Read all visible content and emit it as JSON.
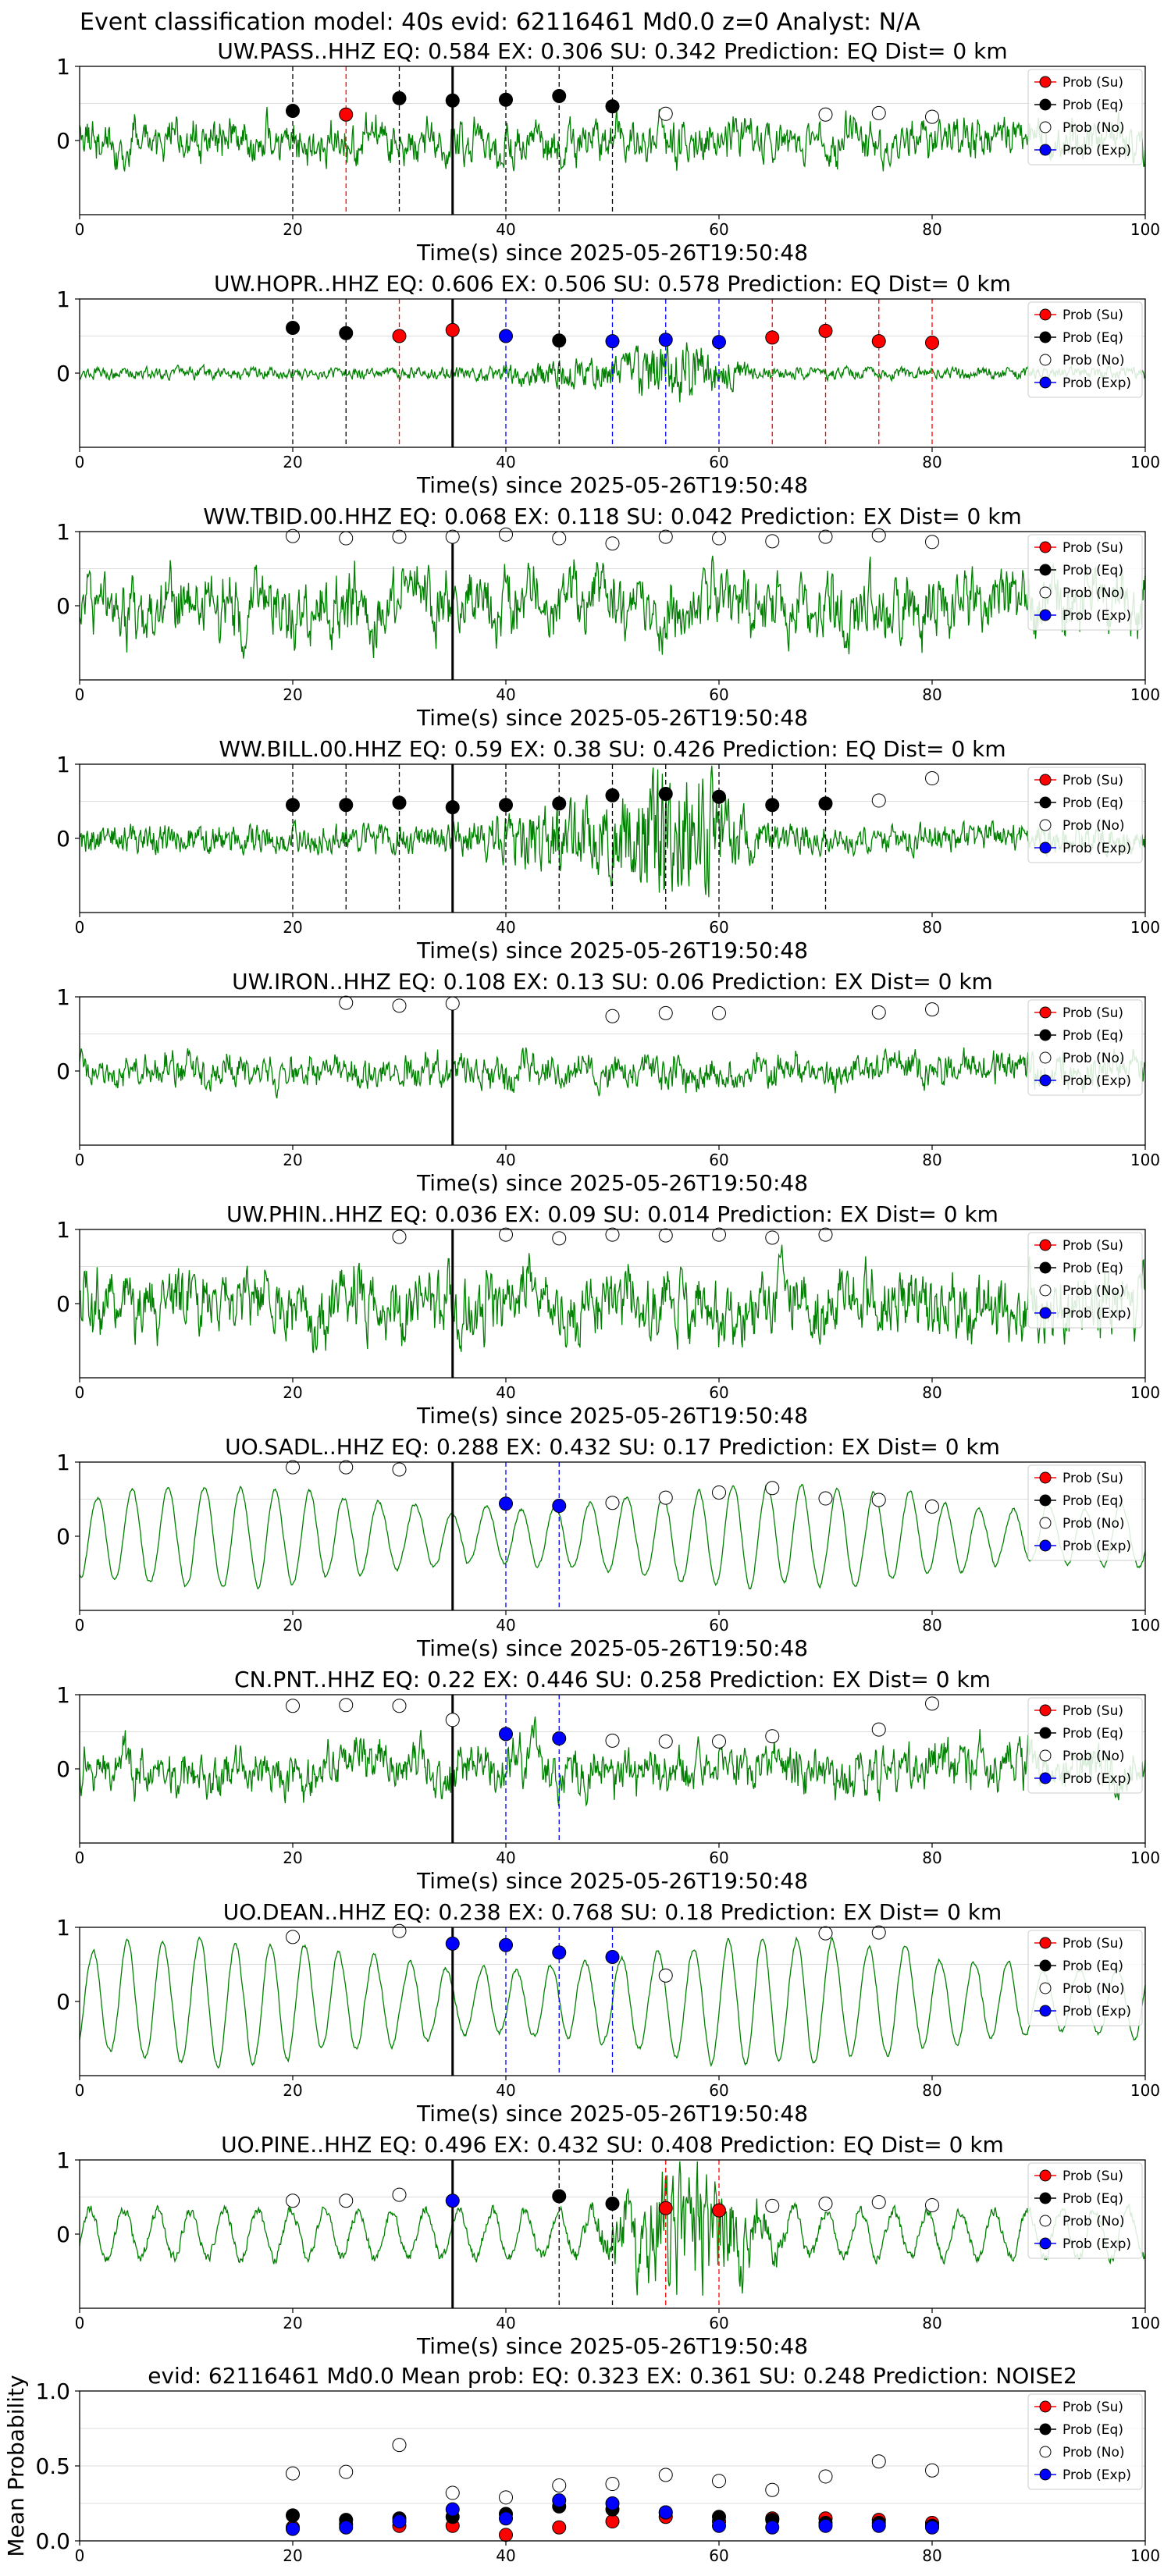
{
  "figure": {
    "suptitle": "Event classification model: 40s evid: 62116461 Md0.0 z=0 Analyst: N/A"
  },
  "legend_labels": [
    "Prob (Su)",
    "Prob (Eq)",
    "Prob (No)",
    "Prob (Exp)"
  ],
  "colors": {
    "trace": "#008000",
    "su": "#ff0000",
    "eq": "#000000",
    "no": "#ffffff",
    "exp": "#0000ff",
    "pick": "#000000"
  },
  "chart_data": [
    {
      "type": "line",
      "title": "UW.PASS..HHZ   EQ: 0.584  EX: 0.306  SU: 0.342   Prediction: EQ    Dist= 0 km",
      "xlabel": "Time(s) since 2025-05-26T19:50:48",
      "xlim": [
        0,
        100
      ],
      "ylim": [
        -1,
        1
      ],
      "xticks": [
        "0",
        "20",
        "40",
        "60",
        "80",
        "100"
      ],
      "yticks": [
        "0",
        "1"
      ],
      "pick_time": 35,
      "waveform": {
        "style": "noise",
        "amplitude": 0.4
      },
      "windows": [
        {
          "t": 20,
          "cls": "eq",
          "p": 0.4
        },
        {
          "t": 25,
          "cls": "su",
          "p": 0.35
        },
        {
          "t": 30,
          "cls": "eq",
          "p": 0.57
        },
        {
          "t": 35,
          "cls": "eq",
          "p": 0.54
        },
        {
          "t": 40,
          "cls": "eq",
          "p": 0.55
        },
        {
          "t": 45,
          "cls": "eq",
          "p": 0.6
        },
        {
          "t": 50,
          "cls": "eq",
          "p": 0.46
        },
        {
          "t": 55,
          "cls": "no",
          "p": 0.36
        },
        {
          "t": 70,
          "cls": "no",
          "p": 0.35
        },
        {
          "t": 75,
          "cls": "no",
          "p": 0.37
        },
        {
          "t": 80,
          "cls": "no",
          "p": 0.32
        }
      ]
    },
    {
      "type": "line",
      "title": "UW.HOPR..HHZ   EQ: 0.606  EX: 0.506  SU: 0.578   Prediction: EQ    Dist= 0 km",
      "xlabel": "Time(s) since 2025-05-26T19:50:48",
      "xlim": [
        0,
        100
      ],
      "ylim": [
        -1,
        1
      ],
      "xticks": [
        "0",
        "20",
        "40",
        "60",
        "80",
        "100"
      ],
      "yticks": [
        "0",
        "1"
      ],
      "pick_time": 35,
      "waveform": {
        "style": "burst",
        "amplitude": 0.08
      },
      "windows": [
        {
          "t": 20,
          "cls": "eq",
          "p": 0.61
        },
        {
          "t": 25,
          "cls": "eq",
          "p": 0.54
        },
        {
          "t": 30,
          "cls": "su",
          "p": 0.5
        },
        {
          "t": 35,
          "cls": "su",
          "p": 0.58
        },
        {
          "t": 40,
          "cls": "exp",
          "p": 0.5
        },
        {
          "t": 45,
          "cls": "eq",
          "p": 0.44
        },
        {
          "t": 50,
          "cls": "exp",
          "p": 0.43
        },
        {
          "t": 55,
          "cls": "exp",
          "p": 0.45
        },
        {
          "t": 60,
          "cls": "exp",
          "p": 0.42
        },
        {
          "t": 65,
          "cls": "su",
          "p": 0.48
        },
        {
          "t": 70,
          "cls": "su",
          "p": 0.57
        },
        {
          "t": 75,
          "cls": "su",
          "p": 0.43
        },
        {
          "t": 80,
          "cls": "su",
          "p": 0.41
        }
      ]
    },
    {
      "type": "line",
      "title": "WW.TBID.00.HHZ   EQ: 0.068  EX: 0.118  SU: 0.042   Prediction: EX    Dist= 0 km",
      "xlabel": "Time(s) since 2025-05-26T19:50:48",
      "xlim": [
        0,
        100
      ],
      "ylim": [
        -1,
        1
      ],
      "xticks": [
        "0",
        "20",
        "40",
        "60",
        "80",
        "100"
      ],
      "yticks": [
        "0",
        "1"
      ],
      "pick_time": 35,
      "waveform": {
        "style": "noise",
        "amplitude": 0.6
      },
      "windows": [
        {
          "t": 20,
          "cls": "no",
          "p": 0.94
        },
        {
          "t": 25,
          "cls": "no",
          "p": 0.91
        },
        {
          "t": 30,
          "cls": "no",
          "p": 0.93
        },
        {
          "t": 35,
          "cls": "no",
          "p": 0.93
        },
        {
          "t": 40,
          "cls": "no",
          "p": 0.96
        },
        {
          "t": 45,
          "cls": "no",
          "p": 0.91
        },
        {
          "t": 50,
          "cls": "no",
          "p": 0.84
        },
        {
          "t": 55,
          "cls": "no",
          "p": 0.93
        },
        {
          "t": 60,
          "cls": "no",
          "p": 0.91
        },
        {
          "t": 65,
          "cls": "no",
          "p": 0.87
        },
        {
          "t": 70,
          "cls": "no",
          "p": 0.93
        },
        {
          "t": 75,
          "cls": "no",
          "p": 0.95
        },
        {
          "t": 80,
          "cls": "no",
          "p": 0.86
        }
      ]
    },
    {
      "type": "line",
      "title": "WW.BILL.00.HHZ   EQ: 0.59  EX: 0.38  SU: 0.426   Prediction: EQ    Dist= 0 km",
      "xlabel": "Time(s) since 2025-05-26T19:50:48",
      "xlim": [
        0,
        100
      ],
      "ylim": [
        -1,
        1
      ],
      "xticks": [
        "0",
        "20",
        "40",
        "60",
        "80",
        "100"
      ],
      "yticks": [
        "0",
        "1"
      ],
      "pick_time": 35,
      "waveform": {
        "style": "burst",
        "amplitude": 0.2
      },
      "windows": [
        {
          "t": 20,
          "cls": "eq",
          "p": 0.45
        },
        {
          "t": 25,
          "cls": "eq",
          "p": 0.45
        },
        {
          "t": 30,
          "cls": "eq",
          "p": 0.48
        },
        {
          "t": 35,
          "cls": "eq",
          "p": 0.42
        },
        {
          "t": 40,
          "cls": "eq",
          "p": 0.45
        },
        {
          "t": 45,
          "cls": "eq",
          "p": 0.47
        },
        {
          "t": 50,
          "cls": "eq",
          "p": 0.58
        },
        {
          "t": 55,
          "cls": "eq",
          "p": 0.6
        },
        {
          "t": 60,
          "cls": "eq",
          "p": 0.56
        },
        {
          "t": 65,
          "cls": "eq",
          "p": 0.45
        },
        {
          "t": 70,
          "cls": "eq",
          "p": 0.47
        },
        {
          "t": 75,
          "cls": "no",
          "p": 0.51
        },
        {
          "t": 80,
          "cls": "no",
          "p": 0.81
        }
      ]
    },
    {
      "type": "line",
      "title": "UW.IRON..HHZ   EQ: 0.108  EX: 0.13  SU: 0.06   Prediction: EX    Dist= 0 km",
      "xlabel": "Time(s) since 2025-05-26T19:50:48",
      "xlim": [
        0,
        100
      ],
      "ylim": [
        -1,
        1
      ],
      "xticks": [
        "0",
        "20",
        "40",
        "60",
        "80",
        "100"
      ],
      "yticks": [
        "0",
        "1"
      ],
      "pick_time": 35,
      "waveform": {
        "style": "noise",
        "amplitude": 0.3
      },
      "windows": [
        {
          "t": 25,
          "cls": "no",
          "p": 0.92
        },
        {
          "t": 30,
          "cls": "no",
          "p": 0.88
        },
        {
          "t": 35,
          "cls": "no",
          "p": 0.91
        },
        {
          "t": 50,
          "cls": "no",
          "p": 0.74
        },
        {
          "t": 55,
          "cls": "no",
          "p": 0.78
        },
        {
          "t": 60,
          "cls": "no",
          "p": 0.78
        },
        {
          "t": 75,
          "cls": "no",
          "p": 0.79
        },
        {
          "t": 80,
          "cls": "no",
          "p": 0.83
        }
      ]
    },
    {
      "type": "line",
      "title": "UW.PHIN..HHZ   EQ: 0.036  EX: 0.09  SU: 0.014   Prediction: EX    Dist= 0 km",
      "xlabel": "Time(s) since 2025-05-26T19:50:48",
      "xlim": [
        0,
        100
      ],
      "ylim": [
        -1,
        1
      ],
      "xticks": [
        "0",
        "20",
        "40",
        "60",
        "80",
        "100"
      ],
      "yticks": [
        "0",
        "1"
      ],
      "pick_time": 35,
      "waveform": {
        "style": "noise",
        "amplitude": 0.6
      },
      "windows": [
        {
          "t": 30,
          "cls": "no",
          "p": 0.9
        },
        {
          "t": 40,
          "cls": "no",
          "p": 0.93
        },
        {
          "t": 45,
          "cls": "no",
          "p": 0.88
        },
        {
          "t": 50,
          "cls": "no",
          "p": 0.93
        },
        {
          "t": 55,
          "cls": "no",
          "p": 0.92
        },
        {
          "t": 60,
          "cls": "no",
          "p": 0.93
        },
        {
          "t": 65,
          "cls": "no",
          "p": 0.89
        },
        {
          "t": 70,
          "cls": "no",
          "p": 0.93
        }
      ]
    },
    {
      "type": "line",
      "title": "UO.SADL..HHZ   EQ: 0.288  EX: 0.432  SU: 0.17   Prediction: EX    Dist= 0 km",
      "xlabel": "Time(s) since 2025-05-26T19:50:48",
      "xlim": [
        0,
        100
      ],
      "ylim": [
        -1,
        1
      ],
      "xticks": [
        "0",
        "20",
        "40",
        "60",
        "80",
        "100"
      ],
      "yticks": [
        "0",
        "1"
      ],
      "pick_time": 35,
      "waveform": {
        "style": "sine",
        "amplitude": 0.65
      },
      "windows": [
        {
          "t": 20,
          "cls": "no",
          "p": 0.93
        },
        {
          "t": 25,
          "cls": "no",
          "p": 0.93
        },
        {
          "t": 30,
          "cls": "no",
          "p": 0.9
        },
        {
          "t": 40,
          "cls": "exp",
          "p": 0.44
        },
        {
          "t": 45,
          "cls": "exp",
          "p": 0.41
        },
        {
          "t": 50,
          "cls": "no",
          "p": 0.45
        },
        {
          "t": 55,
          "cls": "no",
          "p": 0.52
        },
        {
          "t": 60,
          "cls": "no",
          "p": 0.59
        },
        {
          "t": 65,
          "cls": "no",
          "p": 0.65
        },
        {
          "t": 70,
          "cls": "no",
          "p": 0.51
        },
        {
          "t": 75,
          "cls": "no",
          "p": 0.49
        },
        {
          "t": 80,
          "cls": "no",
          "p": 0.4
        }
      ]
    },
    {
      "type": "line",
      "title": "CN.PNT..HHZ   EQ: 0.22  EX: 0.446  SU: 0.258   Prediction: EX    Dist= 0 km",
      "xlabel": "Time(s) since 2025-05-26T19:50:48",
      "xlim": [
        0,
        100
      ],
      "ylim": [
        -1,
        1
      ],
      "xticks": [
        "0",
        "20",
        "40",
        "60",
        "80",
        "100"
      ],
      "yticks": [
        "0",
        "1"
      ],
      "pick_time": 35,
      "waveform": {
        "style": "noise",
        "amplitude": 0.45
      },
      "windows": [
        {
          "t": 20,
          "cls": "no",
          "p": 0.85
        },
        {
          "t": 25,
          "cls": "no",
          "p": 0.86
        },
        {
          "t": 30,
          "cls": "no",
          "p": 0.85
        },
        {
          "t": 35,
          "cls": "no",
          "p": 0.66
        },
        {
          "t": 40,
          "cls": "exp",
          "p": 0.47
        },
        {
          "t": 45,
          "cls": "exp",
          "p": 0.41
        },
        {
          "t": 50,
          "cls": "no",
          "p": 0.38
        },
        {
          "t": 55,
          "cls": "no",
          "p": 0.37
        },
        {
          "t": 60,
          "cls": "no",
          "p": 0.37
        },
        {
          "t": 65,
          "cls": "no",
          "p": 0.44
        },
        {
          "t": 75,
          "cls": "no",
          "p": 0.53
        },
        {
          "t": 80,
          "cls": "no",
          "p": 0.88
        }
      ]
    },
    {
      "type": "line",
      "title": "UO.DEAN..HHZ   EQ: 0.238  EX: 0.768  SU: 0.18   Prediction: EX    Dist= 0 km",
      "xlabel": "Time(s) since 2025-05-26T19:50:48",
      "xlim": [
        0,
        100
      ],
      "ylim": [
        -1,
        1
      ],
      "xticks": [
        "0",
        "20",
        "40",
        "60",
        "80",
        "100"
      ],
      "yticks": [
        "0",
        "1"
      ],
      "pick_time": 35,
      "waveform": {
        "style": "sine",
        "amplitude": 0.8
      },
      "windows": [
        {
          "t": 20,
          "cls": "no",
          "p": 0.87
        },
        {
          "t": 30,
          "cls": "no",
          "p": 0.95
        },
        {
          "t": 35,
          "cls": "exp",
          "p": 0.78
        },
        {
          "t": 40,
          "cls": "exp",
          "p": 0.76
        },
        {
          "t": 45,
          "cls": "exp",
          "p": 0.66
        },
        {
          "t": 50,
          "cls": "exp",
          "p": 0.6
        },
        {
          "t": 55,
          "cls": "no",
          "p": 0.35
        },
        {
          "t": 70,
          "cls": "no",
          "p": 0.92
        },
        {
          "t": 75,
          "cls": "no",
          "p": 0.93
        }
      ]
    },
    {
      "type": "line",
      "title": "UO.PINE..HHZ   EQ: 0.496  EX: 0.432  SU: 0.408   Prediction: EQ    Dist= 0 km",
      "xlabel": "Time(s) since 2025-05-26T19:50:48",
      "xlim": [
        0,
        100
      ],
      "ylim": [
        -1,
        1
      ],
      "xticks": [
        "0",
        "20",
        "40",
        "60",
        "80",
        "100"
      ],
      "yticks": [
        "0",
        "1"
      ],
      "pick_time": 35,
      "waveform": {
        "style": "sineburst",
        "amplitude": 0.4
      },
      "windows": [
        {
          "t": 20,
          "cls": "no",
          "p": 0.45
        },
        {
          "t": 25,
          "cls": "no",
          "p": 0.45
        },
        {
          "t": 30,
          "cls": "no",
          "p": 0.53
        },
        {
          "t": 35,
          "cls": "exp",
          "p": 0.45
        },
        {
          "t": 45,
          "cls": "eq",
          "p": 0.51
        },
        {
          "t": 50,
          "cls": "eq",
          "p": 0.41
        },
        {
          "t": 55,
          "cls": "su",
          "p": 0.35
        },
        {
          "t": 60,
          "cls": "su",
          "p": 0.32
        },
        {
          "t": 65,
          "cls": "no",
          "p": 0.38
        },
        {
          "t": 70,
          "cls": "no",
          "p": 0.41
        },
        {
          "t": 75,
          "cls": "no",
          "p": 0.43
        },
        {
          "t": 80,
          "cls": "no",
          "p": 0.39
        }
      ]
    },
    {
      "type": "scatter",
      "title": "evid: 62116461  Md0.0   Mean prob:   EQ: 0.323  EX: 0.361  SU: 0.248   Prediction: NOISE2",
      "ylabel": "Mean Probability",
      "xlim": [
        0,
        100
      ],
      "ylim": [
        0,
        1
      ],
      "xticks": [
        "0",
        "20",
        "40",
        "60",
        "80",
        "100"
      ],
      "yticks": [
        "0.0",
        "0.5",
        "1.0"
      ],
      "x": [
        20,
        25,
        30,
        35,
        40,
        45,
        50,
        55,
        60,
        65,
        70,
        75,
        80
      ],
      "series": [
        {
          "name": "Prob (Su)",
          "cls": "su",
          "values": [
            0.09,
            0.11,
            0.1,
            0.1,
            0.04,
            0.09,
            0.13,
            0.16,
            0.13,
            0.15,
            0.15,
            0.14,
            0.12
          ]
        },
        {
          "name": "Prob (Eq)",
          "cls": "eq",
          "values": [
            0.17,
            0.14,
            0.15,
            0.16,
            0.18,
            0.23,
            0.21,
            0.19,
            0.16,
            0.14,
            0.12,
            0.12,
            0.1
          ]
        },
        {
          "name": "Prob (No)",
          "cls": "no",
          "values": [
            0.45,
            0.46,
            0.64,
            0.32,
            0.29,
            0.37,
            0.38,
            0.44,
            0.4,
            0.34,
            0.43,
            0.53,
            0.47
          ]
        },
        {
          "name": "Prob (Exp)",
          "cls": "exp",
          "values": [
            0.08,
            0.09,
            0.13,
            0.21,
            0.15,
            0.27,
            0.25,
            0.19,
            0.1,
            0.09,
            0.1,
            0.1,
            0.09
          ]
        }
      ]
    }
  ]
}
